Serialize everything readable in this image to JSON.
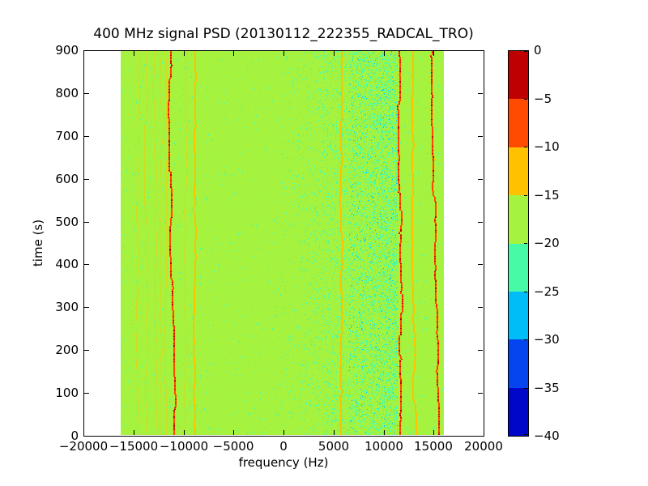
{
  "figure": {
    "title": "400 MHz signal PSD (20130112_222355_RADCAL_TRO)"
  },
  "chart_data": {
    "type": "heatmap",
    "title": "400 MHz signal PSD (20130112_222355_RADCAL_TRO)",
    "xlabel": "frequency (Hz)",
    "ylabel": "time (s)",
    "xlim": [
      -20000,
      20000
    ],
    "ylim": [
      0,
      900
    ],
    "grid": false,
    "xticks": {
      "values": [
        -20000,
        -15000,
        -10000,
        -5000,
        0,
        5000,
        10000,
        15000,
        20000
      ],
      "labels": [
        "−20000",
        "−15000",
        "−10000",
        "−5000",
        "0",
        "5000",
        "10000",
        "15000",
        "20000"
      ]
    },
    "yticks": {
      "values": [
        0,
        100,
        200,
        300,
        400,
        500,
        600,
        700,
        800,
        900
      ],
      "labels": [
        "0",
        "100",
        "200",
        "300",
        "400",
        "500",
        "600",
        "700",
        "800",
        "900"
      ]
    },
    "data_extent_hz": [
      -16300,
      16000
    ],
    "background_level_db": -17,
    "tones": [
      {
        "freq_hz": -14600,
        "level_db": -14,
        "drift_hz": 0
      },
      {
        "freq_hz": -13800,
        "level_db": -14,
        "drift_hz": 0
      },
      {
        "freq_hz": -12950,
        "level_db": -13.5,
        "drift_hz": 100
      },
      {
        "freq_hz": -12250,
        "level_db": -13,
        "drift_hz": 0
      },
      {
        "freq_hz": -11900,
        "level_db": -13.5,
        "drift_hz": 0
      },
      {
        "freq_hz": -11400,
        "level_db": -6,
        "drift_hz": 450
      },
      {
        "freq_hz": -9850,
        "level_db": -13.5,
        "drift_hz": 0
      },
      {
        "freq_hz": -8950,
        "level_db": -11,
        "drift_hz": 150
      },
      {
        "freq_hz": 5800,
        "level_db": -12,
        "drift_hz": 100
      },
      {
        "freq_hz": 11550,
        "level_db": -6,
        "drift_hz": 250
      },
      {
        "freq_hz": 12950,
        "level_db": -11,
        "drift_hz": 120
      },
      {
        "freq_hz": 14900,
        "level_db": -7,
        "drift_hz": 450
      }
    ],
    "noise_band": {
      "freq_range_hz": [
        -1000,
        11350
      ],
      "min_level_db": -27,
      "description": "cyan speckle noise, density increasing toward 11 kHz"
    },
    "colorbar": {
      "vmin": -40,
      "vmax": 0,
      "tick_values": [
        0,
        -5,
        -10,
        -15,
        -20,
        -25,
        -30,
        -35,
        -40
      ],
      "tick_labels": [
        "0",
        "−5",
        "−10",
        "−15",
        "−20",
        "−25",
        "−30",
        "−35",
        "−40"
      ],
      "segment_colors_top_to_bottom": [
        "#BE0000",
        "#FF4B00",
        "#FFC100",
        "#A6F33F",
        "#46FAA6",
        "#00BDF7",
        "#0545F0",
        "#0007C8"
      ]
    }
  }
}
